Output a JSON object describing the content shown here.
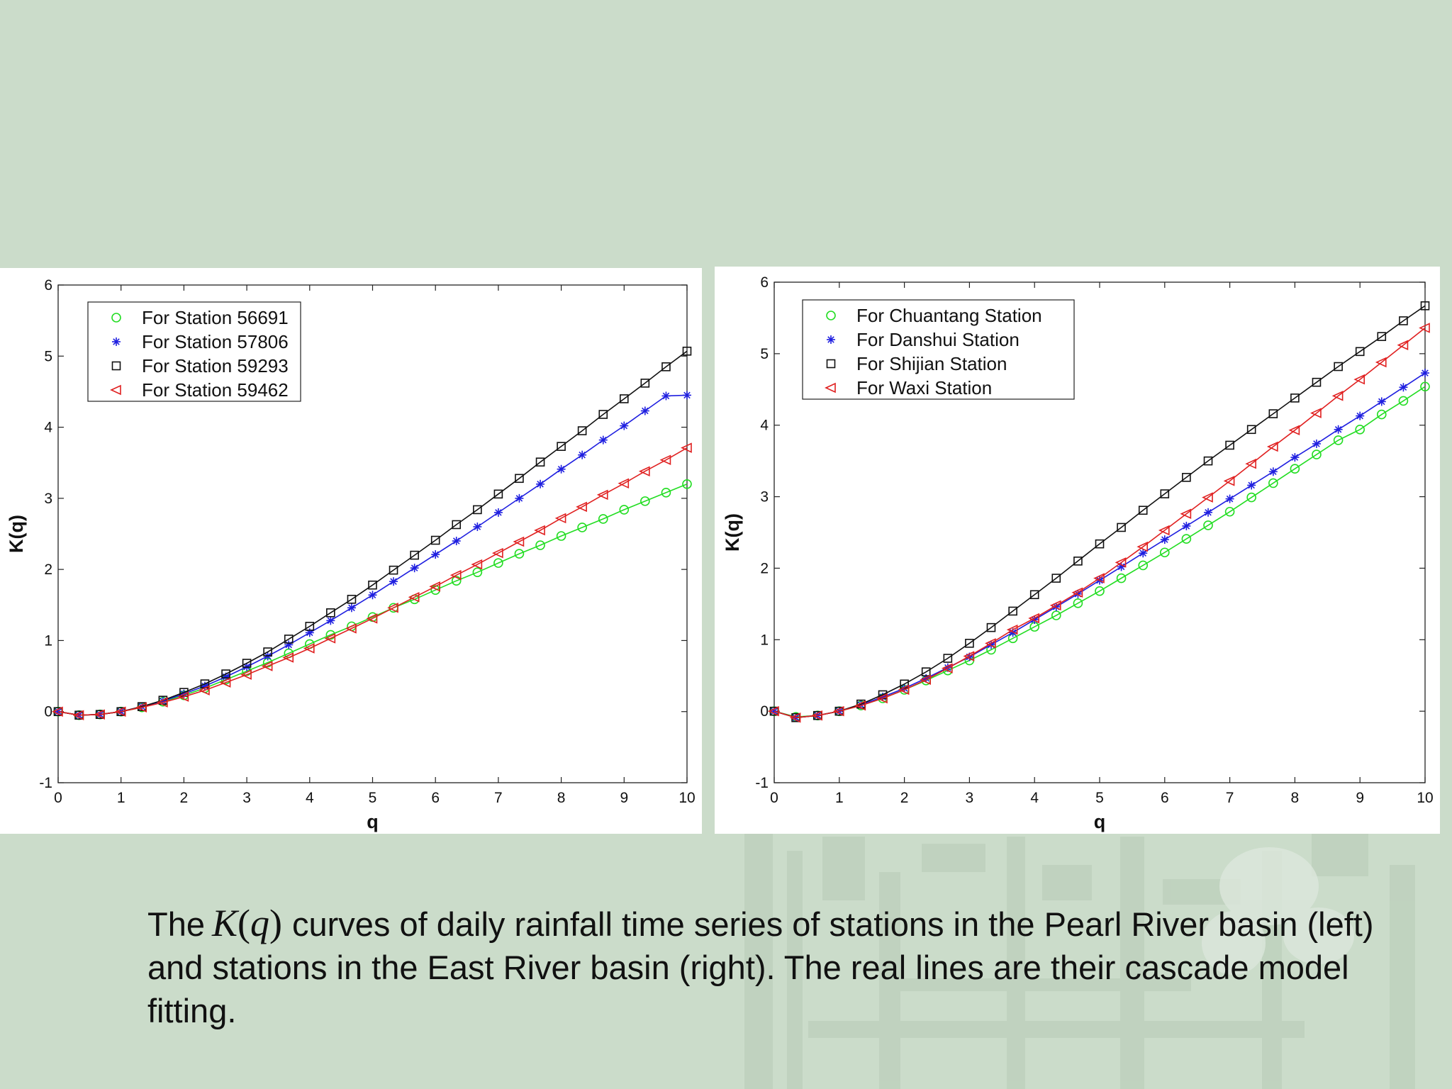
{
  "caption": {
    "text_before": "The",
    "math_symbol": "K",
    "math_arg": "q",
    "text_after": "curves of daily rainfall time series of stations in the Pearl River basin (left) and stations in the East River basin (right). The real lines are their cascade model fitting."
  },
  "chart_data": [
    {
      "type": "line",
      "title": "",
      "xlabel": "q",
      "ylabel": "K(q)",
      "xlim": [
        0,
        10
      ],
      "ylim": [
        -1,
        6
      ],
      "xticks": [
        "0",
        "1",
        "2",
        "3",
        "4",
        "5",
        "6",
        "7",
        "8",
        "9",
        "10"
      ],
      "yticks": [
        "-1",
        "0",
        "1",
        "2",
        "3",
        "4",
        "5",
        "6"
      ],
      "legend_position": "top-left",
      "marker_x": [
        0,
        0.333,
        0.667,
        1,
        1.333,
        1.667,
        2,
        2.333,
        2.667,
        3,
        3.333,
        3.667,
        4,
        4.333,
        4.667,
        5,
        5.333,
        5.667,
        6,
        6.333,
        6.667,
        7,
        7.333,
        7.667,
        8,
        8.333,
        8.667,
        9,
        9.333,
        9.667,
        10
      ],
      "series": [
        {
          "name": "For Station 56691",
          "marker": "circle",
          "color": "#22dd22",
          "values": [
            0,
            -0.05,
            -0.04,
            0,
            0.06,
            0.14,
            0.23,
            0.33,
            0.45,
            0.57,
            0.69,
            0.82,
            0.95,
            1.08,
            1.2,
            1.33,
            1.46,
            1.58,
            1.71,
            1.84,
            1.96,
            2.09,
            2.22,
            2.34,
            2.47,
            2.59,
            2.71,
            2.84,
            2.96,
            3.08,
            3.2
          ]
        },
        {
          "name": "For Station 57806",
          "marker": "star",
          "color": "#1f1fe0",
          "values": [
            0,
            -0.05,
            -0.04,
            0,
            0.07,
            0.15,
            0.25,
            0.36,
            0.49,
            0.63,
            0.78,
            0.94,
            1.11,
            1.28,
            1.46,
            1.64,
            1.83,
            2.02,
            2.21,
            2.4,
            2.6,
            2.8,
            3.0,
            3.2,
            3.41,
            3.61,
            3.82,
            4.02,
            4.23,
            4.44,
            4.45
          ]
        },
        {
          "name": "For Station 59293",
          "marker": "square",
          "color": "#111111",
          "values": [
            0,
            -0.05,
            -0.04,
            0,
            0.07,
            0.16,
            0.27,
            0.39,
            0.53,
            0.68,
            0.84,
            1.02,
            1.2,
            1.39,
            1.58,
            1.78,
            1.99,
            2.2,
            2.41,
            2.63,
            2.84,
            3.06,
            3.28,
            3.51,
            3.73,
            3.95,
            4.18,
            4.4,
            4.62,
            4.85,
            5.07
          ]
        },
        {
          "name": "For Station 59462",
          "marker": "triangle-left",
          "color": "#e02020",
          "values": [
            0,
            -0.05,
            -0.04,
            0,
            0.06,
            0.13,
            0.21,
            0.3,
            0.41,
            0.52,
            0.64,
            0.76,
            0.89,
            1.03,
            1.17,
            1.31,
            1.46,
            1.61,
            1.76,
            1.92,
            2.07,
            2.23,
            2.39,
            2.55,
            2.72,
            2.88,
            3.05,
            3.21,
            3.38,
            3.54,
            3.71
          ]
        }
      ]
    },
    {
      "type": "line",
      "title": "",
      "xlabel": "q",
      "ylabel": "K(q)",
      "xlim": [
        0,
        10
      ],
      "ylim": [
        -1,
        6
      ],
      "xticks": [
        "0",
        "1",
        "2",
        "3",
        "4",
        "5",
        "6",
        "7",
        "8",
        "9",
        "10"
      ],
      "yticks": [
        "-1",
        "0",
        "1",
        "2",
        "3",
        "4",
        "5",
        "6"
      ],
      "legend_position": "top-left",
      "marker_x": [
        0,
        0.333,
        0.667,
        1,
        1.333,
        1.667,
        2,
        2.333,
        2.667,
        3,
        3.333,
        3.667,
        4,
        4.333,
        4.667,
        5,
        5.333,
        5.667,
        6,
        6.333,
        6.667,
        7,
        7.333,
        7.667,
        8,
        8.333,
        8.667,
        9,
        9.333,
        9.667,
        10
      ],
      "series": [
        {
          "name": "For Chuantang Station",
          "marker": "circle",
          "color": "#22dd22",
          "values": [
            0,
            -0.08,
            -0.06,
            0,
            0.08,
            0.18,
            0.3,
            0.43,
            0.57,
            0.71,
            0.86,
            1.02,
            1.18,
            1.34,
            1.51,
            1.68,
            1.86,
            2.04,
            2.22,
            2.41,
            2.6,
            2.79,
            2.99,
            3.19,
            3.39,
            3.59,
            3.79,
            3.94,
            4.15,
            4.34,
            4.54
          ]
        },
        {
          "name": "For Danshui Station",
          "marker": "star",
          "color": "#1f1fe0",
          "values": [
            0,
            -0.09,
            -0.06,
            0,
            0.09,
            0.2,
            0.32,
            0.46,
            0.61,
            0.76,
            0.93,
            1.1,
            1.28,
            1.46,
            1.64,
            1.83,
            2.02,
            2.21,
            2.4,
            2.59,
            2.78,
            2.97,
            3.16,
            3.35,
            3.55,
            3.74,
            3.94,
            4.13,
            4.33,
            4.53,
            4.73
          ]
        },
        {
          "name": "For Shijian Station",
          "marker": "square",
          "color": "#111111",
          "values": [
            0,
            -0.09,
            -0.06,
            0,
            0.1,
            0.23,
            0.38,
            0.55,
            0.74,
            0.95,
            1.17,
            1.4,
            1.63,
            1.86,
            2.1,
            2.34,
            2.57,
            2.81,
            3.04,
            3.27,
            3.5,
            3.72,
            3.94,
            4.16,
            4.38,
            4.6,
            4.82,
            5.03,
            5.24,
            5.46,
            5.67
          ]
        },
        {
          "name": "For Waxi Station",
          "marker": "triangle-left",
          "color": "#e02020",
          "values": [
            0,
            -0.09,
            -0.06,
            0,
            0.08,
            0.18,
            0.3,
            0.44,
            0.6,
            0.77,
            0.95,
            1.14,
            1.3,
            1.48,
            1.66,
            1.86,
            2.08,
            2.3,
            2.53,
            2.76,
            2.99,
            3.22,
            3.46,
            3.7,
            3.93,
            4.17,
            4.41,
            4.64,
            4.88,
            5.12,
            5.36
          ]
        }
      ]
    }
  ]
}
